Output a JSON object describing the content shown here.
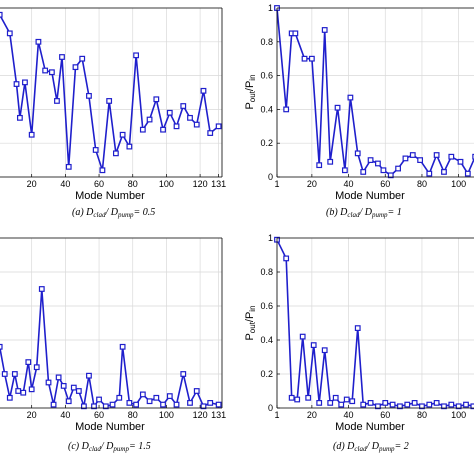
{
  "colors": {
    "series": "#1f1fcc",
    "grid": "#d9d9d9",
    "axis": "#000000"
  },
  "chart_data": [
    {
      "type": "line",
      "panel": "a",
      "caption": "(a) D_clad/ D_pump = 0.5",
      "caption_parts": {
        "label": "(a)",
        "ratio": "= 0.5"
      },
      "xlabel": "Mode Number",
      "ylabel": "",
      "xlim": [
        0,
        133
      ],
      "ylim": [
        0,
        1
      ],
      "grid": true,
      "x_tick_labels": [
        "20",
        "40",
        "60",
        "80",
        "100",
        "120",
        "131"
      ],
      "y_tick_labels": [],
      "x": [
        1,
        7,
        11,
        13,
        16,
        20,
        24,
        28,
        32,
        35,
        38,
        42,
        46,
        50,
        54,
        58,
        62,
        66,
        70,
        74,
        78,
        82,
        86,
        90,
        94,
        98,
        102,
        106,
        110,
        114,
        118,
        122,
        126,
        131
      ],
      "values": [
        0.96,
        0.85,
        0.55,
        0.35,
        0.56,
        0.25,
        0.8,
        0.63,
        0.62,
        0.45,
        0.71,
        0.06,
        0.65,
        0.7,
        0.48,
        0.16,
        0.04,
        0.45,
        0.14,
        0.25,
        0.18,
        0.72,
        0.28,
        0.34,
        0.46,
        0.28,
        0.38,
        0.3,
        0.42,
        0.35,
        0.31,
        0.51,
        0.26,
        0.3
      ]
    },
    {
      "type": "line",
      "panel": "b",
      "caption": "(b) D_clad/ D_pump = 1",
      "caption_parts": {
        "label": "(b)",
        "ratio": "= 1"
      },
      "xlabel": "Mode Number",
      "ylabel": "P_out/P_in",
      "xlim": [
        1,
        110
      ],
      "ylim": [
        0,
        1
      ],
      "grid": true,
      "x_tick_labels": [
        "1",
        "20",
        "40",
        "60",
        "80",
        "100"
      ],
      "y_tick_labels": [
        "0",
        "0.2",
        "0.4",
        "0.6",
        "0.8",
        "1"
      ],
      "x": [
        1,
        6,
        9,
        11,
        16,
        20,
        24,
        27,
        30,
        34,
        38,
        41,
        45,
        48,
        52,
        56,
        59,
        63,
        67,
        71,
        75,
        79,
        84,
        88,
        92,
        96,
        101,
        105,
        109,
        112
      ],
      "values": [
        1.0,
        0.4,
        0.85,
        0.85,
        0.7,
        0.7,
        0.07,
        0.87,
        0.09,
        0.41,
        0.04,
        0.47,
        0.14,
        0.03,
        0.1,
        0.08,
        0.04,
        0.01,
        0.05,
        0.11,
        0.13,
        0.1,
        0.02,
        0.13,
        0.03,
        0.12,
        0.09,
        0.02,
        0.12,
        0.07
      ]
    },
    {
      "type": "line",
      "panel": "c",
      "caption": "(c) D_clad/ D_pump = 1.5",
      "caption_parts": {
        "label": "(c)",
        "ratio": "= 1.5"
      },
      "xlabel": "Mode Number",
      "ylabel": "",
      "xlim": [
        0,
        133
      ],
      "ylim": [
        0,
        1
      ],
      "grid": true,
      "x_tick_labels": [
        "20",
        "40",
        "60",
        "80",
        "100",
        "120",
        "131"
      ],
      "y_tick_labels": [],
      "x": [
        1,
        4,
        7,
        10,
        12,
        15,
        18,
        20,
        23,
        26,
        30,
        33,
        36,
        39,
        42,
        45,
        48,
        51,
        54,
        57,
        60,
        64,
        68,
        72,
        74,
        78,
        82,
        86,
        90,
        94,
        98,
        102,
        106,
        110,
        114,
        118,
        122,
        126,
        131
      ],
      "values": [
        0.36,
        0.2,
        0.06,
        0.2,
        0.1,
        0.09,
        0.27,
        0.11,
        0.24,
        0.7,
        0.15,
        0.02,
        0.18,
        0.13,
        0.04,
        0.12,
        0.1,
        0.01,
        0.19,
        0.01,
        0.05,
        0.01,
        0.02,
        0.06,
        0.36,
        0.03,
        0.02,
        0.08,
        0.04,
        0.06,
        0.02,
        0.07,
        0.02,
        0.2,
        0.03,
        0.1,
        0.01,
        0.03,
        0.02
      ]
    },
    {
      "type": "line",
      "panel": "d",
      "caption": "(d) D_clad/ D_pump = 2",
      "caption_parts": {
        "label": "(d)",
        "ratio": "= 2"
      },
      "xlabel": "Mode Number",
      "ylabel": "P_out/P_in",
      "xlim": [
        1,
        110
      ],
      "ylim": [
        0,
        1
      ],
      "grid": true,
      "x_tick_labels": [
        "1",
        "20",
        "40",
        "60",
        "80",
        "100"
      ],
      "y_tick_labels": [
        "0",
        "0.2",
        "0.4",
        "0.6",
        "0.8",
        "1"
      ],
      "x": [
        1,
        6,
        9,
        12,
        15,
        18,
        21,
        24,
        27,
        30,
        33,
        36,
        39,
        42,
        45,
        48,
        52,
        56,
        60,
        64,
        68,
        72,
        76,
        80,
        84,
        88,
        92,
        96,
        100,
        104,
        108,
        112
      ],
      "values": [
        0.99,
        0.88,
        0.06,
        0.05,
        0.42,
        0.06,
        0.37,
        0.03,
        0.34,
        0.03,
        0.06,
        0.02,
        0.05,
        0.04,
        0.47,
        0.02,
        0.03,
        0.01,
        0.03,
        0.02,
        0.01,
        0.02,
        0.03,
        0.01,
        0.02,
        0.03,
        0.01,
        0.02,
        0.01,
        0.02,
        0.01,
        0.02
      ]
    }
  ]
}
